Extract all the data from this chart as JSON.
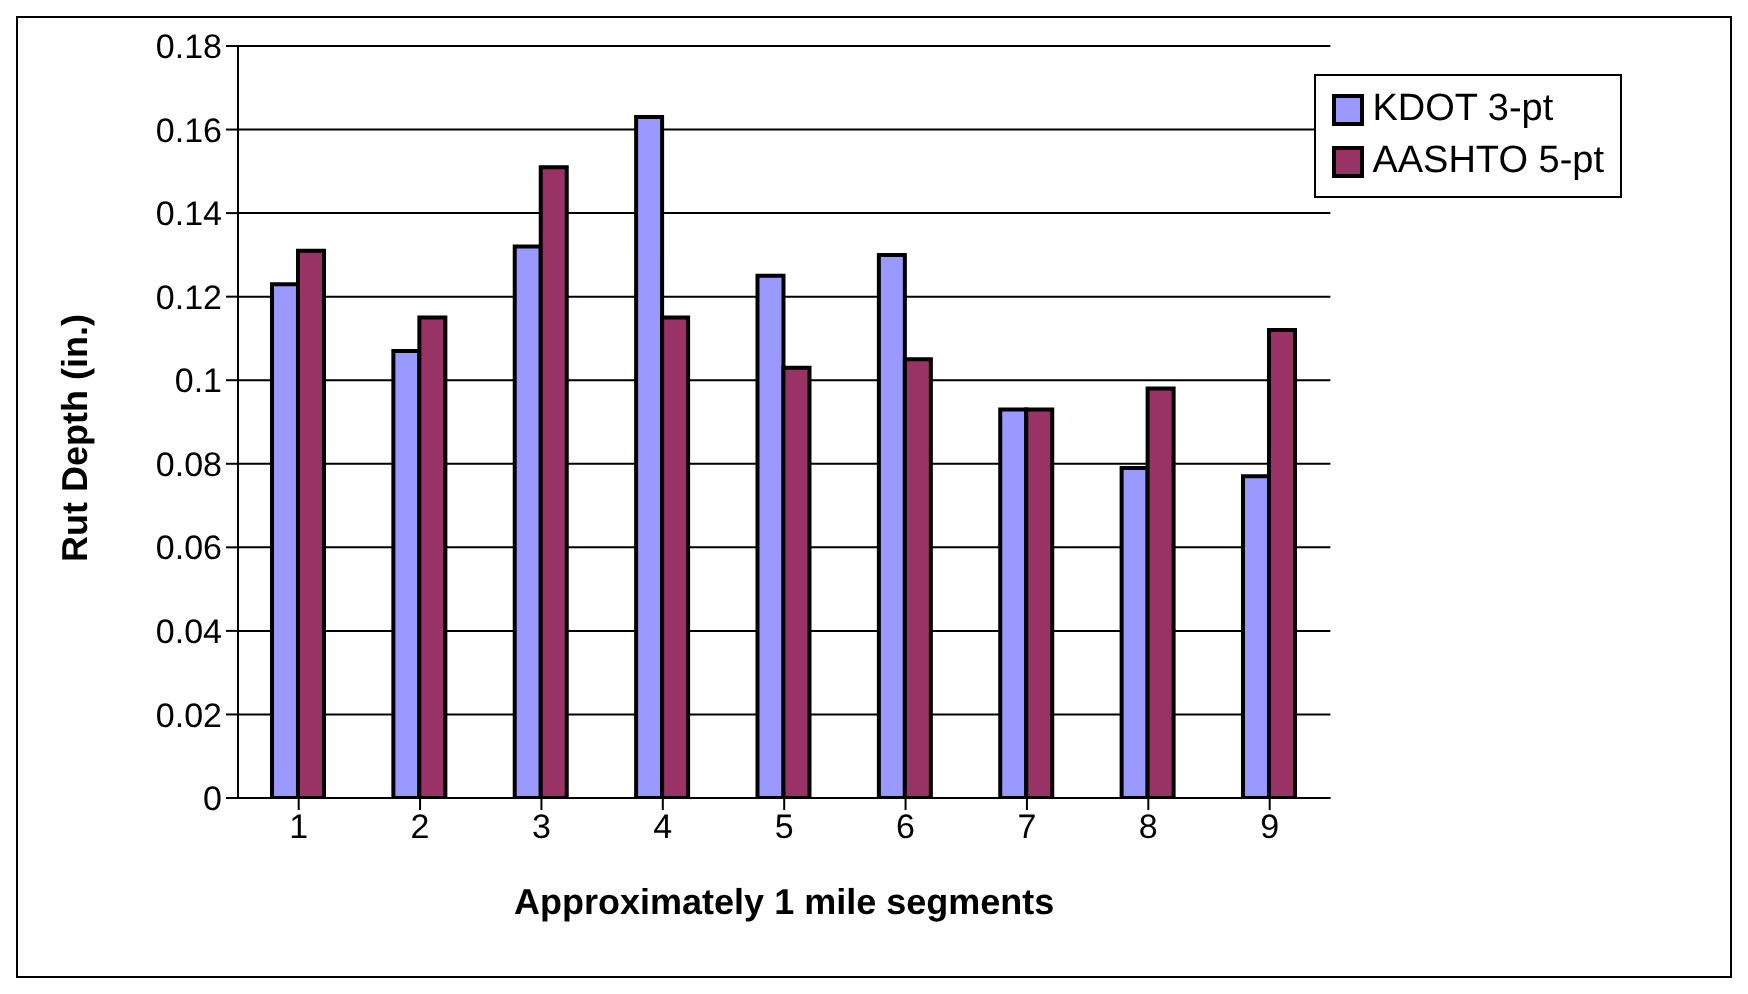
{
  "chart_data": {
    "type": "bar",
    "xlabel": "Approximately 1 mile segments",
    "ylabel": "Rut Depth (in.)",
    "categories": [
      "1",
      "2",
      "3",
      "4",
      "5",
      "6",
      "7",
      "8",
      "9"
    ],
    "series": [
      {
        "name": "KDOT 3-pt",
        "color": "#9999ff",
        "values": [
          0.123,
          0.107,
          0.132,
          0.163,
          0.125,
          0.13,
          0.093,
          0.079,
          0.077
        ]
      },
      {
        "name": "AASHTO 5-pt",
        "color": "#993366",
        "values": [
          0.131,
          0.115,
          0.151,
          0.115,
          0.103,
          0.105,
          0.093,
          0.098,
          0.112
        ]
      }
    ],
    "ylim": [
      0,
      0.18
    ],
    "yticks": [
      0,
      0.02,
      0.04,
      0.06,
      0.08,
      0.1,
      0.12,
      0.14,
      0.16,
      0.18
    ],
    "grid": "y",
    "legend": "top right"
  }
}
